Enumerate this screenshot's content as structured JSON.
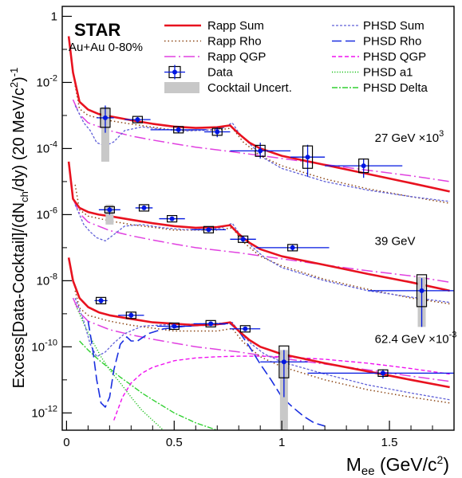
{
  "chart_data": {
    "type": "line",
    "experiment": "STAR",
    "system": "Au+Au 0-80%",
    "xlabel": "M_ee (GeV/c^2)",
    "ylabel": "Excess[Data-Cocktail]/(dN_ch/dy) (20 MeV/c^2)^-1",
    "y_scale": "log",
    "xlim": [
      -0.02,
      1.8
    ],
    "ylim": [
      3e-13,
      2
    ],
    "x_ticks": [
      0,
      0.5,
      1,
      1.5
    ],
    "x_tick_labels": [
      "0",
      "0.5",
      "1",
      "1.5"
    ],
    "y_ticks": [
      1,
      0.01,
      0.0001,
      1e-06,
      1e-08,
      1e-10,
      1e-12
    ],
    "y_tick_labels": [
      {
        "base": "1",
        "exp": ""
      },
      {
        "base": "10",
        "exp": "-2"
      },
      {
        "base": "10",
        "exp": "-4"
      },
      {
        "base": "10",
        "exp": "-6"
      },
      {
        "base": "10",
        "exp": "-8"
      },
      {
        "base": "10",
        "exp": "-10"
      },
      {
        "base": "10",
        "exp": "-12"
      }
    ],
    "legend_position": "top",
    "legend": [
      {
        "label": "Rapp Sum",
        "style": "rapp_sum"
      },
      {
        "label": "Rapp Rho",
        "style": "rapp_rho"
      },
      {
        "label": "Rapp QGP",
        "style": "rapp_qgp"
      },
      {
        "label": "Data",
        "style": "data"
      },
      {
        "label": "Cocktail Uncert.",
        "style": "band"
      },
      {
        "label": "PHSD Sum",
        "style": "phsd_sum"
      },
      {
        "label": "PHSD Rho",
        "style": "phsd_rho"
      },
      {
        "label": "PHSD QGP",
        "style": "phsd_qgp"
      },
      {
        "label": "PHSD a1",
        "style": "phsd_a1"
      },
      {
        "label": "PHSD Delta",
        "style": "phsd_delta"
      }
    ],
    "annotations": [
      {
        "text": "27 GeV ×10",
        "sup": "3",
        "x": 1.15,
        "y": 0.00016
      },
      {
        "text": "39 GeV",
        "sup": "",
        "x": 1.15,
        "y": 1.2e-07
      },
      {
        "text": "62.4 GeV ×10",
        "sup": "-3",
        "x": 1.15,
        "y": 1.3e-10
      }
    ],
    "styles": {
      "rapp_sum": {
        "color": "#e8121f",
        "dash": "",
        "width": 2.6
      },
      "rapp_rho": {
        "color": "#8b4513",
        "dash": "1.5 3",
        "width": 1.5
      },
      "rapp_qgp": {
        "color": "#e040e0",
        "dash": "14 4 2 4",
        "width": 1.5
      },
      "phsd_sum": {
        "color": "#6060d8",
        "dash": "3 2",
        "width": 1.3
      },
      "phsd_rho": {
        "color": "#1a2fe0",
        "dash": "12 5",
        "width": 1.6
      },
      "phsd_qgp": {
        "color": "#f010f0",
        "dash": "5 3",
        "width": 1.4
      },
      "phsd_a1": {
        "color": "#18c018",
        "dash": "1.2 2",
        "width": 1.4
      },
      "phsd_delta": {
        "color": "#30d030",
        "dash": "7 2 2 2",
        "width": 1.4
      },
      "data": {
        "color": "#0016e0"
      },
      "band": {
        "color": "#c8c8c8"
      }
    },
    "datasets": [
      {
        "name": "27 GeV",
        "points": [
          {
            "x": 0.18,
            "y": 0.00085,
            "xerr": 0.04,
            "ylo": 0.0003,
            "yhi": 0.002,
            "band_lo": 4e-05,
            "band_hi": 0.0018
          },
          {
            "x": 0.33,
            "y": 0.00075,
            "xerr": 0.06,
            "ylo": 0.0006,
            "yhi": 0.0009
          },
          {
            "x": 0.52,
            "y": 0.00037,
            "xerr": 0.13,
            "ylo": 0.00029,
            "yhi": 0.00046
          },
          {
            "x": 0.7,
            "y": 0.00032,
            "xerr": 0.06,
            "ylo": 0.00022,
            "yhi": 0.00044
          },
          {
            "x": 0.9,
            "y": 8.5e-05,
            "xerr": 0.14,
            "ylo": 5e-05,
            "yhi": 0.00015
          },
          {
            "x": 1.12,
            "y": 5.5e-05,
            "xerr": 0.08,
            "ylo": 1.4e-05,
            "yhi": 0.00013
          },
          {
            "x": 1.38,
            "y": 3e-05,
            "xerr": 0.18,
            "ylo": 1.3e-05,
            "yhi": 5e-05
          }
        ],
        "curves": {
          "rapp_sum": {
            "x": [
              0.01,
              0.03,
              0.06,
              0.1,
              0.15,
              0.2,
              0.3,
              0.4,
              0.5,
              0.6,
              0.7,
              0.76,
              0.8,
              0.85,
              0.9,
              1.0,
              1.2,
              1.4,
              1.6,
              1.78
            ],
            "y": [
              0.25,
              0.02,
              0.0026,
              0.0015,
              0.0011,
              0.00095,
              0.00072,
              0.00056,
              0.00046,
              0.00042,
              0.00044,
              0.0005,
              0.00028,
              0.00015,
              0.0001,
              6e-05,
              3.2e-05,
              1.7e-05,
              9e-06,
              5e-06
            ]
          },
          "rapp_rho": {
            "x": [
              0.04,
              0.06,
              0.1,
              0.2,
              0.3,
              0.5,
              0.7,
              0.77,
              0.82,
              0.9,
              1.0,
              1.2,
              1.4,
              1.6,
              1.78
            ],
            "y": [
              0.008,
              0.0016,
              0.001,
              0.0007,
              0.00055,
              0.00036,
              0.00036,
              0.00042,
              0.00016,
              6e-05,
              3e-05,
              1.2e-05,
              6e-06,
              3.5e-06,
              2.2e-06
            ]
          },
          "rapp_qgp": {
            "x": [
              0.03,
              0.06,
              0.1,
              0.2,
              0.3,
              0.4,
              0.5,
              0.6,
              0.8,
              1.0,
              1.2,
              1.4,
              1.6,
              1.78
            ],
            "y": [
              0.003,
              0.0011,
              0.0006,
              0.00035,
              0.00024,
              0.00018,
              0.00014,
              0.00011,
              7.5e-05,
              5e-05,
              3.3e-05,
              2.2e-05,
              1.5e-05,
              1e-05
            ]
          },
          "phsd_sum": {
            "x": [
              0.04,
              0.08,
              0.11,
              0.14,
              0.18,
              0.22,
              0.27,
              0.35,
              0.45,
              0.55,
              0.65,
              0.72,
              0.77,
              0.8,
              0.86,
              0.92,
              1.0,
              1.2,
              1.4,
              1.6,
              1.78
            ],
            "y": [
              0.002,
              0.0006,
              0.00035,
              0.00015,
              0.00012,
              0.00016,
              0.00035,
              0.00045,
              0.00038,
              0.00034,
              0.00036,
              0.0004,
              0.0006,
              0.0003,
              0.00012,
              5e-05,
              2.5e-05,
              1e-05,
              5.5e-06,
              3.5e-06,
              2.5e-06
            ]
          }
        }
      },
      {
        "name": "39 GeV",
        "points": [
          {
            "x": 0.2,
            "y": 1.4e-06,
            "xerr": 0.05,
            "ylo": 1e-06,
            "yhi": 1.8e-06,
            "band_lo": 5e-07,
            "band_hi": 2e-06
          },
          {
            "x": 0.36,
            "y": 1.6e-06,
            "xerr": 0.04,
            "ylo": 1.4e-06,
            "yhi": 1.8e-06
          },
          {
            "x": 0.49,
            "y": 7.5e-07,
            "xerr": 0.06,
            "ylo": 6.5e-07,
            "yhi": 8.5e-07
          },
          {
            "x": 0.66,
            "y": 3.5e-07,
            "xerr": 0.08,
            "ylo": 3e-07,
            "yhi": 4e-07
          },
          {
            "x": 0.82,
            "y": 1.8e-07,
            "xerr": 0.06,
            "ylo": 1.4e-07,
            "yhi": 2.2e-07
          },
          {
            "x": 1.05,
            "y": 1e-07,
            "xerr": 0.17,
            "ylo": 8e-08,
            "yhi": 1.2e-07
          },
          {
            "x": 1.65,
            "y": 5e-09,
            "xerr": 0.25,
            "ylo": 4e-10,
            "yhi": 1.2e-08,
            "band_lo": 4e-10,
            "band_hi": 1.3e-08
          }
        ],
        "curves": {
          "rapp_sum": {
            "x": [
              0.01,
              0.03,
              0.06,
              0.1,
              0.15,
              0.2,
              0.3,
              0.4,
              0.5,
              0.6,
              0.7,
              0.76,
              0.8,
              0.85,
              0.9,
              1.0,
              1.2,
              1.4,
              1.6,
              1.78
            ],
            "y": [
              4e-05,
              3e-06,
              1.6e-06,
              1.2e-06,
              1e-06,
              9e-07,
              7e-07,
              5.5e-07,
              4.5e-07,
              4e-07,
              4.2e-07,
              4.8e-07,
              2.6e-07,
              1.4e-07,
              9e-08,
              5.5e-08,
              3e-08,
              1.6e-08,
              9e-09,
              5e-09
            ]
          },
          "rapp_rho": {
            "x": [
              0.04,
              0.06,
              0.1,
              0.2,
              0.3,
              0.5,
              0.7,
              0.77,
              0.82,
              0.9,
              1.0,
              1.2,
              1.4,
              1.6,
              1.78
            ],
            "y": [
              8e-06,
              1.4e-06,
              9e-07,
              6.5e-07,
              5e-07,
              3.4e-07,
              3.4e-07,
              4e-07,
              1.5e-07,
              5.5e-08,
              2.8e-08,
              1.1e-08,
              5.5e-09,
              3e-09,
              2e-09
            ]
          },
          "rapp_qgp": {
            "x": [
              0.03,
              0.06,
              0.1,
              0.2,
              0.3,
              0.4,
              0.5,
              0.6,
              0.8,
              1.0,
              1.2,
              1.4,
              1.6,
              1.78
            ],
            "y": [
              3e-06,
              1.1e-06,
              6e-07,
              3.3e-07,
              2.3e-07,
              1.7e-07,
              1.3e-07,
              1e-07,
              7e-08,
              4.6e-08,
              3e-08,
              2e-08,
              1.4e-08,
              9e-09
            ]
          },
          "phsd_sum": {
            "x": [
              0.04,
              0.08,
              0.11,
              0.14,
              0.18,
              0.22,
              0.27,
              0.35,
              0.45,
              0.55,
              0.65,
              0.72,
              0.77,
              0.8,
              0.86,
              0.92,
              1.0,
              1.2,
              1.4,
              1.6,
              1.78
            ],
            "y": [
              2e-06,
              5e-07,
              3e-07,
              2e-07,
              1.6e-07,
              2.5e-07,
              4.5e-07,
              5e-07,
              4e-07,
              3.5e-07,
              3.6e-07,
              4e-07,
              5.5e-07,
              2.8e-07,
              1.1e-07,
              5e-08,
              2.5e-08,
              1e-08,
              5e-09,
              3.2e-09,
              2.2e-09
            ]
          }
        }
      },
      {
        "name": "62.4 GeV",
        "points": [
          {
            "x": 0.16,
            "y": 2.5e-09,
            "xerr": 0.03,
            "ylo": 2e-09,
            "yhi": 3e-09
          },
          {
            "x": 0.3,
            "y": 9e-10,
            "xerr": 0.06,
            "ylo": 7e-10,
            "yhi": 1.1e-09
          },
          {
            "x": 0.5,
            "y": 4.2e-10,
            "xerr": 0.08,
            "ylo": 3.6e-10,
            "yhi": 4.8e-10
          },
          {
            "x": 0.67,
            "y": 5e-10,
            "xerr": 0.08,
            "ylo": 4.5e-10,
            "yhi": 5.5e-10
          },
          {
            "x": 0.83,
            "y": 3.5e-10,
            "xerr": 0.07,
            "ylo": 3e-10,
            "yhi": 4e-10
          },
          {
            "x": 1.01,
            "y": 3.5e-11,
            "xerr": 0.11,
            "ylo": 3e-12,
            "yhi": 8e-11,
            "band_lo": 3e-13,
            "band_hi": 8e-11
          },
          {
            "x": 1.47,
            "y": 1.6e-11,
            "xerr": 0.35,
            "ylo": 1.1e-11,
            "yhi": 2.1e-11
          }
        ],
        "curves": {
          "rapp_sum": {
            "x": [
              0.01,
              0.03,
              0.06,
              0.1,
              0.15,
              0.2,
              0.3,
              0.4,
              0.5,
              0.6,
              0.7,
              0.76,
              0.8,
              0.85,
              0.9,
              1.0,
              1.2,
              1.4,
              1.6,
              1.78
            ],
            "y": [
              5e-08,
              1e-08,
              3e-09,
              1.6e-09,
              1.1e-09,
              9e-10,
              7e-10,
              5.5e-10,
              5e-10,
              4.5e-10,
              4.8e-10,
              5.5e-10,
              3e-10,
              1.6e-10,
              1e-10,
              6e-11,
              3.2e-11,
              1.8e-11,
              1e-11,
              6e-12
            ]
          },
          "rapp_rho": {
            "x": [
              0.04,
              0.06,
              0.1,
              0.2,
              0.3,
              0.5,
              0.7,
              0.77,
              0.82,
              0.9,
              1.0,
              1.2,
              1.4,
              1.6,
              1.78
            ],
            "y": [
              5e-09,
              1.5e-09,
              9e-10,
              6e-10,
              4.5e-10,
              3e-10,
              3e-10,
              3.6e-10,
              1.4e-10,
              5e-11,
              2.5e-11,
              1e-11,
              5e-12,
              3e-12,
              2e-12
            ]
          },
          "rapp_qgp": {
            "x": [
              0.03,
              0.06,
              0.1,
              0.2,
              0.3,
              0.4,
              0.5,
              0.6,
              0.8,
              1.0,
              1.2,
              1.4,
              1.6,
              1.78
            ],
            "y": [
              3e-09,
              1.1e-09,
              6e-10,
              3.3e-10,
              2.3e-10,
              1.7e-10,
              1.3e-10,
              1e-10,
              7e-11,
              4.5e-11,
              3e-11,
              2e-11,
              1.3e-11,
              9e-12
            ]
          },
          "phsd_sum": {
            "x": [
              0.04,
              0.08,
              0.11,
              0.14,
              0.18,
              0.22,
              0.27,
              0.35,
              0.45,
              0.55,
              0.65,
              0.72,
              0.77,
              0.8,
              0.86,
              0.92,
              1.0,
              1.2,
              1.4,
              1.6,
              1.78
            ],
            "y": [
              3e-09,
              6e-10,
              1.2e-10,
              5e-11,
              7e-11,
              1.3e-10,
              2.5e-10,
              4.2e-10,
              4.6e-10,
              4.8e-10,
              5e-10,
              5.2e-10,
              5.5e-10,
              3e-10,
              1.2e-10,
              6e-11,
              3.5e-11,
              1.5e-11,
              7e-12,
              4e-12,
              2.5e-12
            ]
          },
          "phsd_rho": {
            "x": [
              0.1,
              0.12,
              0.14,
              0.16,
              0.18,
              0.2,
              0.22,
              0.25,
              0.28,
              0.3,
              0.33,
              0.38,
              0.45,
              0.55,
              0.65,
              0.72,
              0.76,
              0.8,
              0.85,
              0.9,
              0.95,
              1.0,
              1.05,
              1.1,
              1.15,
              1.2
            ],
            "y": [
              6e-10,
              1e-10,
              1e-11,
              2e-12,
              1.5e-12,
              3e-12,
              2e-11,
              1.2e-10,
              2e-10,
              1.5e-10,
              1.5e-10,
              2.5e-10,
              3.5e-10,
              4.2e-10,
              4.5e-10,
              4.8e-10,
              5e-10,
              3e-10,
              1e-10,
              3e-11,
              1e-11,
              3e-12,
              1.5e-12,
              8e-13,
              5e-13,
              4e-13
            ]
          },
          "phsd_qgp": {
            "x": [
              0.22,
              0.26,
              0.3,
              0.35,
              0.4,
              0.5,
              0.6,
              0.7,
              0.8,
              0.9,
              1.0,
              1.2,
              1.4,
              1.6,
              1.78
            ],
            "y": [
              6e-13,
              3e-12,
              8e-12,
              1.6e-11,
              2.4e-11,
              3.8e-11,
              4.6e-11,
              5e-11,
              5.2e-11,
              5.2e-11,
              5e-11,
              4.2e-11,
              3.2e-11,
              2.2e-11,
              1.5e-11
            ]
          },
          "phsd_a1": {
            "x": [
              0.04,
              0.08,
              0.12,
              0.16,
              0.2,
              0.25,
              0.3,
              0.35,
              0.4,
              0.45
            ],
            "y": [
              2e-09,
              5e-10,
              1.5e-10,
              5e-11,
              2e-11,
              8e-12,
              3e-12,
              1.2e-12,
              6e-13,
              3e-13
            ]
          },
          "phsd_delta": {
            "x": [
              0.06,
              0.1,
              0.15,
              0.2,
              0.25,
              0.3,
              0.35,
              0.4,
              0.5,
              0.6,
              0.7
            ],
            "y": [
              1.5e-10,
              8e-11,
              4e-11,
              2.2e-11,
              1.2e-11,
              7e-12,
              4e-12,
              2.5e-12,
              1e-12,
              5e-13,
              3e-13
            ]
          }
        }
      }
    ]
  }
}
